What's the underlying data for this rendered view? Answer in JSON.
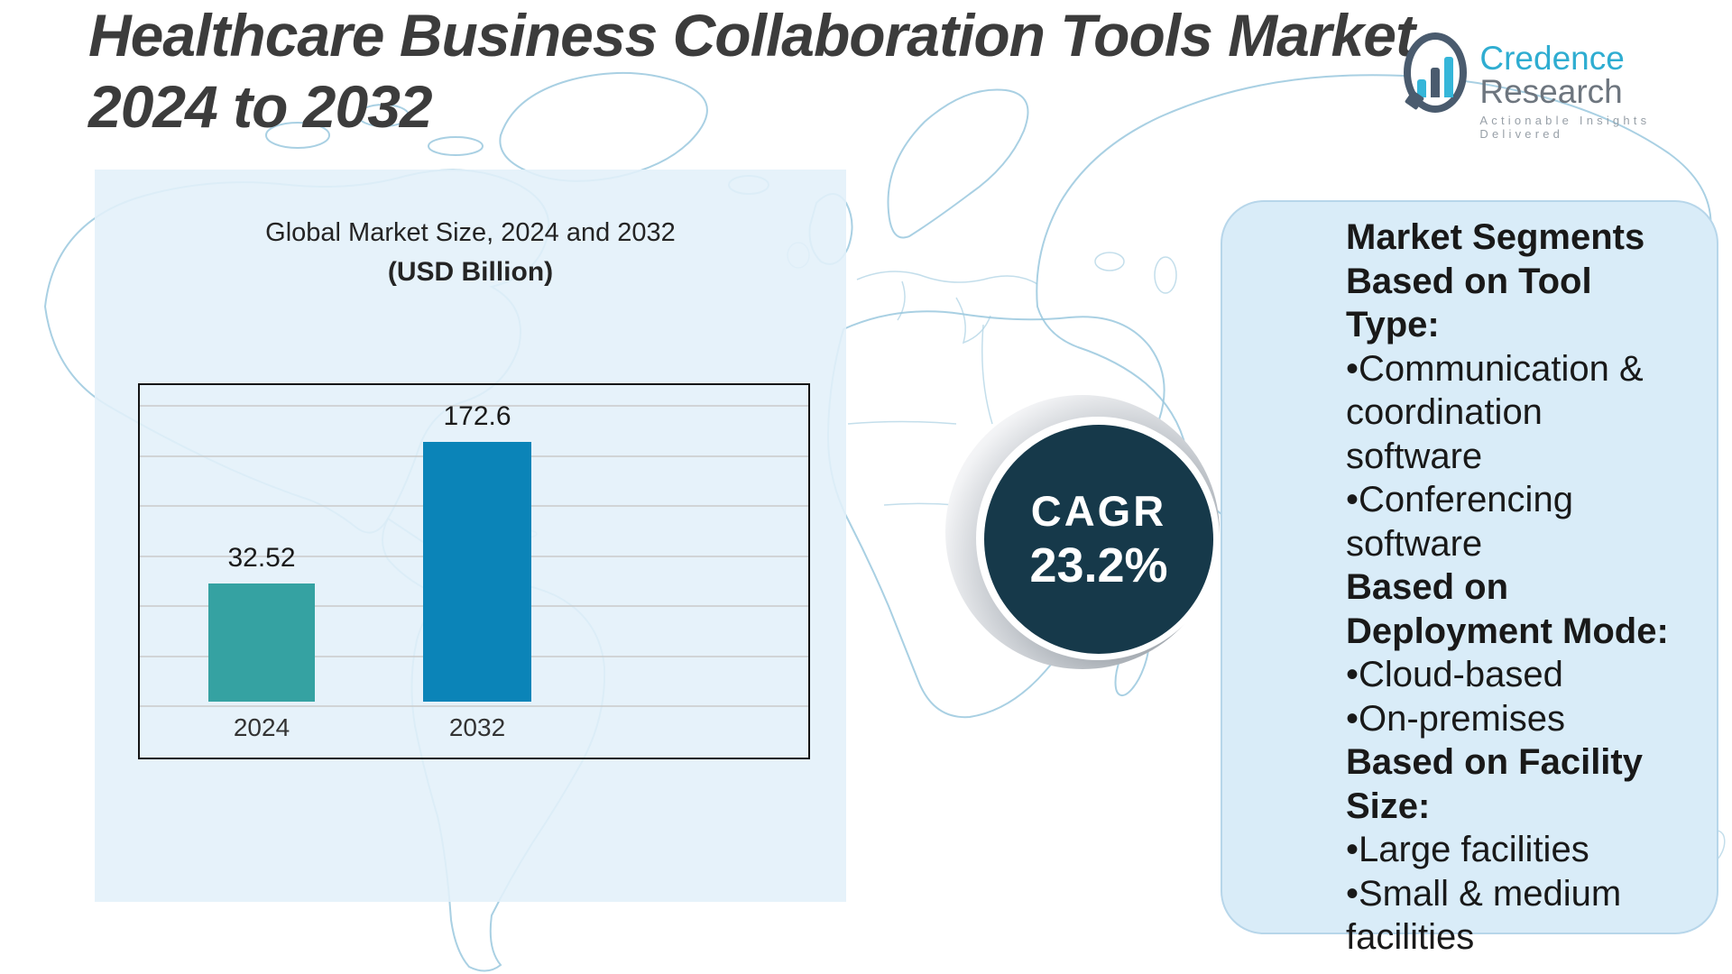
{
  "title": {
    "line1": "Healthcare Business Collaboration Tools Market,",
    "line2": "2024 to 2032"
  },
  "logo": {
    "brand_primary": "Credence",
    "brand_secondary": "Research",
    "tagline": "Actionable Insights Delivered"
  },
  "chart_data": {
    "type": "bar",
    "title": "Global Market Size, 2024 and 2032",
    "subtitle": "(USD Billion)",
    "categories": [
      "2024",
      "2032"
    ],
    "values": [
      32.52,
      172.6
    ],
    "value_labels": [
      "32.52",
      "172.6"
    ],
    "bar_colors": [
      "#35a2a2",
      "#0b84b8"
    ],
    "grid": true,
    "gridline_count": 7,
    "legend_position": "none",
    "bar_height_fractions": [
      0.369,
      0.811
    ]
  },
  "cagr": {
    "label": "CAGR",
    "value": "23.2%"
  },
  "segments_panel": {
    "lines": [
      {
        "text": "Market Segments",
        "bold": true
      },
      {
        "text": "Based on Tool Type:",
        "bold": true
      },
      {
        "text": "•Communication &",
        "bold": false
      },
      {
        "text": "coordination",
        "bold": false
      },
      {
        "text": "software",
        "bold": false
      },
      {
        "text": "•Conferencing",
        "bold": false
      },
      {
        "text": "software",
        "bold": false
      },
      {
        "text": "Based on",
        "bold": true
      },
      {
        "text": "Deployment Mode:",
        "bold": true
      },
      {
        "text": "•Cloud-based",
        "bold": false
      },
      {
        "text": "•On-premises",
        "bold": false
      },
      {
        "text": "Based on Facility",
        "bold": true
      },
      {
        "text": "Size:",
        "bold": true
      },
      {
        "text": "•Large facilities",
        "bold": false
      },
      {
        "text": "•Small & medium",
        "bold": false
      },
      {
        "text": "facilities",
        "bold": false
      }
    ]
  },
  "colors": {
    "bar_2024": "#35a2a2",
    "bar_2032": "#0b84b8",
    "cagr_circle": "#16394a",
    "right_panel_bg": "#d9ecf8",
    "left_panel_bg": "#e2f0f9",
    "map_line": "#9ac8de",
    "title_text": "#3c3c3c",
    "brand_cyan": "#2fadd1",
    "brand_gray": "#6d757e"
  }
}
